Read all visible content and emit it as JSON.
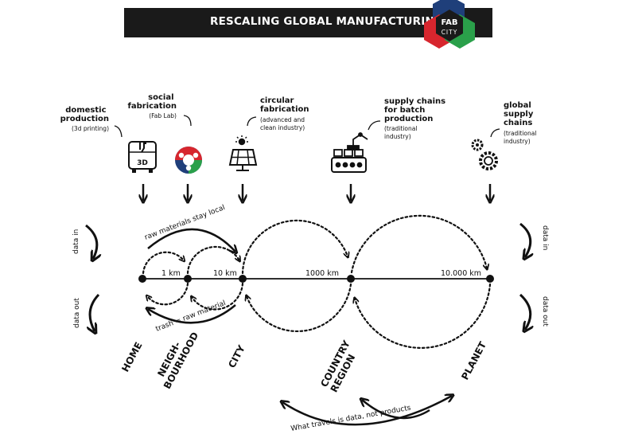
{
  "header": {
    "title": "RESCALING GLOBAL MANUFACTURING",
    "logo_line1": "FAB",
    "logo_line2": "CITY",
    "logo_colors": [
      "#1f3f7a",
      "#d7262e",
      "#2aa04a"
    ]
  },
  "categories": [
    {
      "title": [
        "domestic",
        "production"
      ],
      "sub": [
        "(3d printing)"
      ],
      "icon": "3d-printer-icon",
      "icon_text": "3D"
    },
    {
      "title": [
        "social",
        "fabrication"
      ],
      "sub": [
        "(Fab Lab)"
      ],
      "icon": "fab-lab-logo-icon"
    },
    {
      "title": [
        "circular",
        "fabrication"
      ],
      "sub": [
        "(advanced and",
        "clean industry)"
      ],
      "icon": "solar-panel-icon"
    },
    {
      "title": [
        "supply chains",
        "for batch",
        "production"
      ],
      "sub": [
        "(traditional",
        "industry)"
      ],
      "icon": "conveyor-robot-icon"
    },
    {
      "title": [
        "global",
        "supply",
        "chains"
      ],
      "sub": [
        "(traditional",
        "industry)"
      ],
      "icon": "gears-icon"
    }
  ],
  "distances": [
    "1 km",
    "10 km",
    "1000 km",
    "10.000 km"
  ],
  "scales": [
    [
      "HOME"
    ],
    [
      "NEIGH-",
      "BOURHOOD"
    ],
    [
      "CITY"
    ],
    [
      "COUNTRY",
      "REGION"
    ],
    [
      "PLANET"
    ]
  ],
  "annotations": {
    "raw_local": "raw materials stay local",
    "trash": "trash = raw material",
    "data_in": "data in",
    "data_out": "data out",
    "bottom": "What travels is data, not products"
  },
  "colors": {
    "ink": "#111111"
  }
}
